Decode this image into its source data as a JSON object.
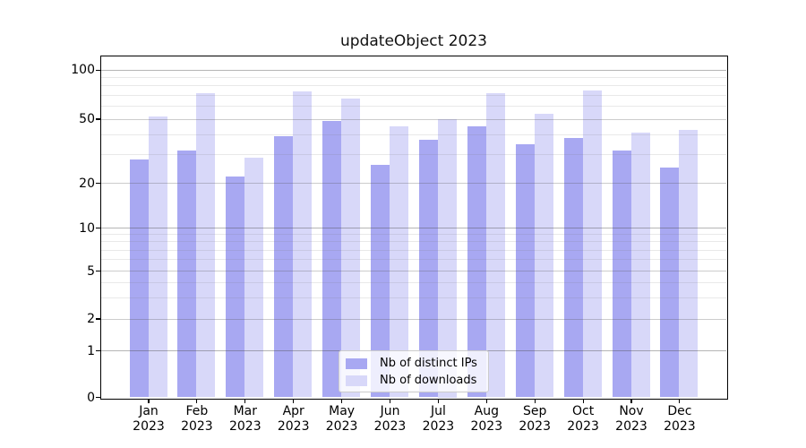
{
  "chart_data": {
    "type": "bar",
    "title": "updateObject 2023",
    "year": "2023",
    "months": [
      "Jan",
      "Feb",
      "Mar",
      "Apr",
      "May",
      "Jun",
      "Jul",
      "Aug",
      "Sep",
      "Oct",
      "Nov",
      "Dec"
    ],
    "categories": [
      "Jan 2023",
      "Feb 2023",
      "Mar 2023",
      "Apr 2023",
      "May 2023",
      "Jun 2023",
      "Jul 2023",
      "Aug 2023",
      "Sep 2023",
      "Oct 2023",
      "Nov 2023",
      "Dec 2023"
    ],
    "series": [
      {
        "name": "Nb of distinct IPs",
        "color": "#a8a8f2",
        "values": [
          28,
          32,
          22,
          39,
          49,
          26,
          37,
          45,
          35,
          38,
          32,
          25
        ]
      },
      {
        "name": "Nb of downloads",
        "color": "#d8d8f9",
        "values": [
          52,
          72,
          29,
          74,
          67,
          45,
          50,
          72,
          54,
          75,
          41,
          43
        ]
      }
    ],
    "y_ticks": [
      0,
      1,
      2,
      5,
      10,
      20,
      50,
      100
    ],
    "y_minor_gridlines": [
      3,
      4,
      6,
      7,
      8,
      9,
      30,
      40,
      60,
      70,
      80,
      90
    ],
    "y_scale": "log-like (0,1,2,5,10,20,50,100)",
    "ylim": [
      0,
      120
    ],
    "grid": true,
    "legend_position": "lower center",
    "colors": {
      "distinct_ips": "#a8a8f2",
      "downloads": "#d8d8f9",
      "gridline_major": "#b5b5b5",
      "gridline_mid": "#c9c9c9",
      "gridline_minor": "#e9e9e9",
      "spine": "#000000",
      "background": "#ffffff"
    }
  }
}
